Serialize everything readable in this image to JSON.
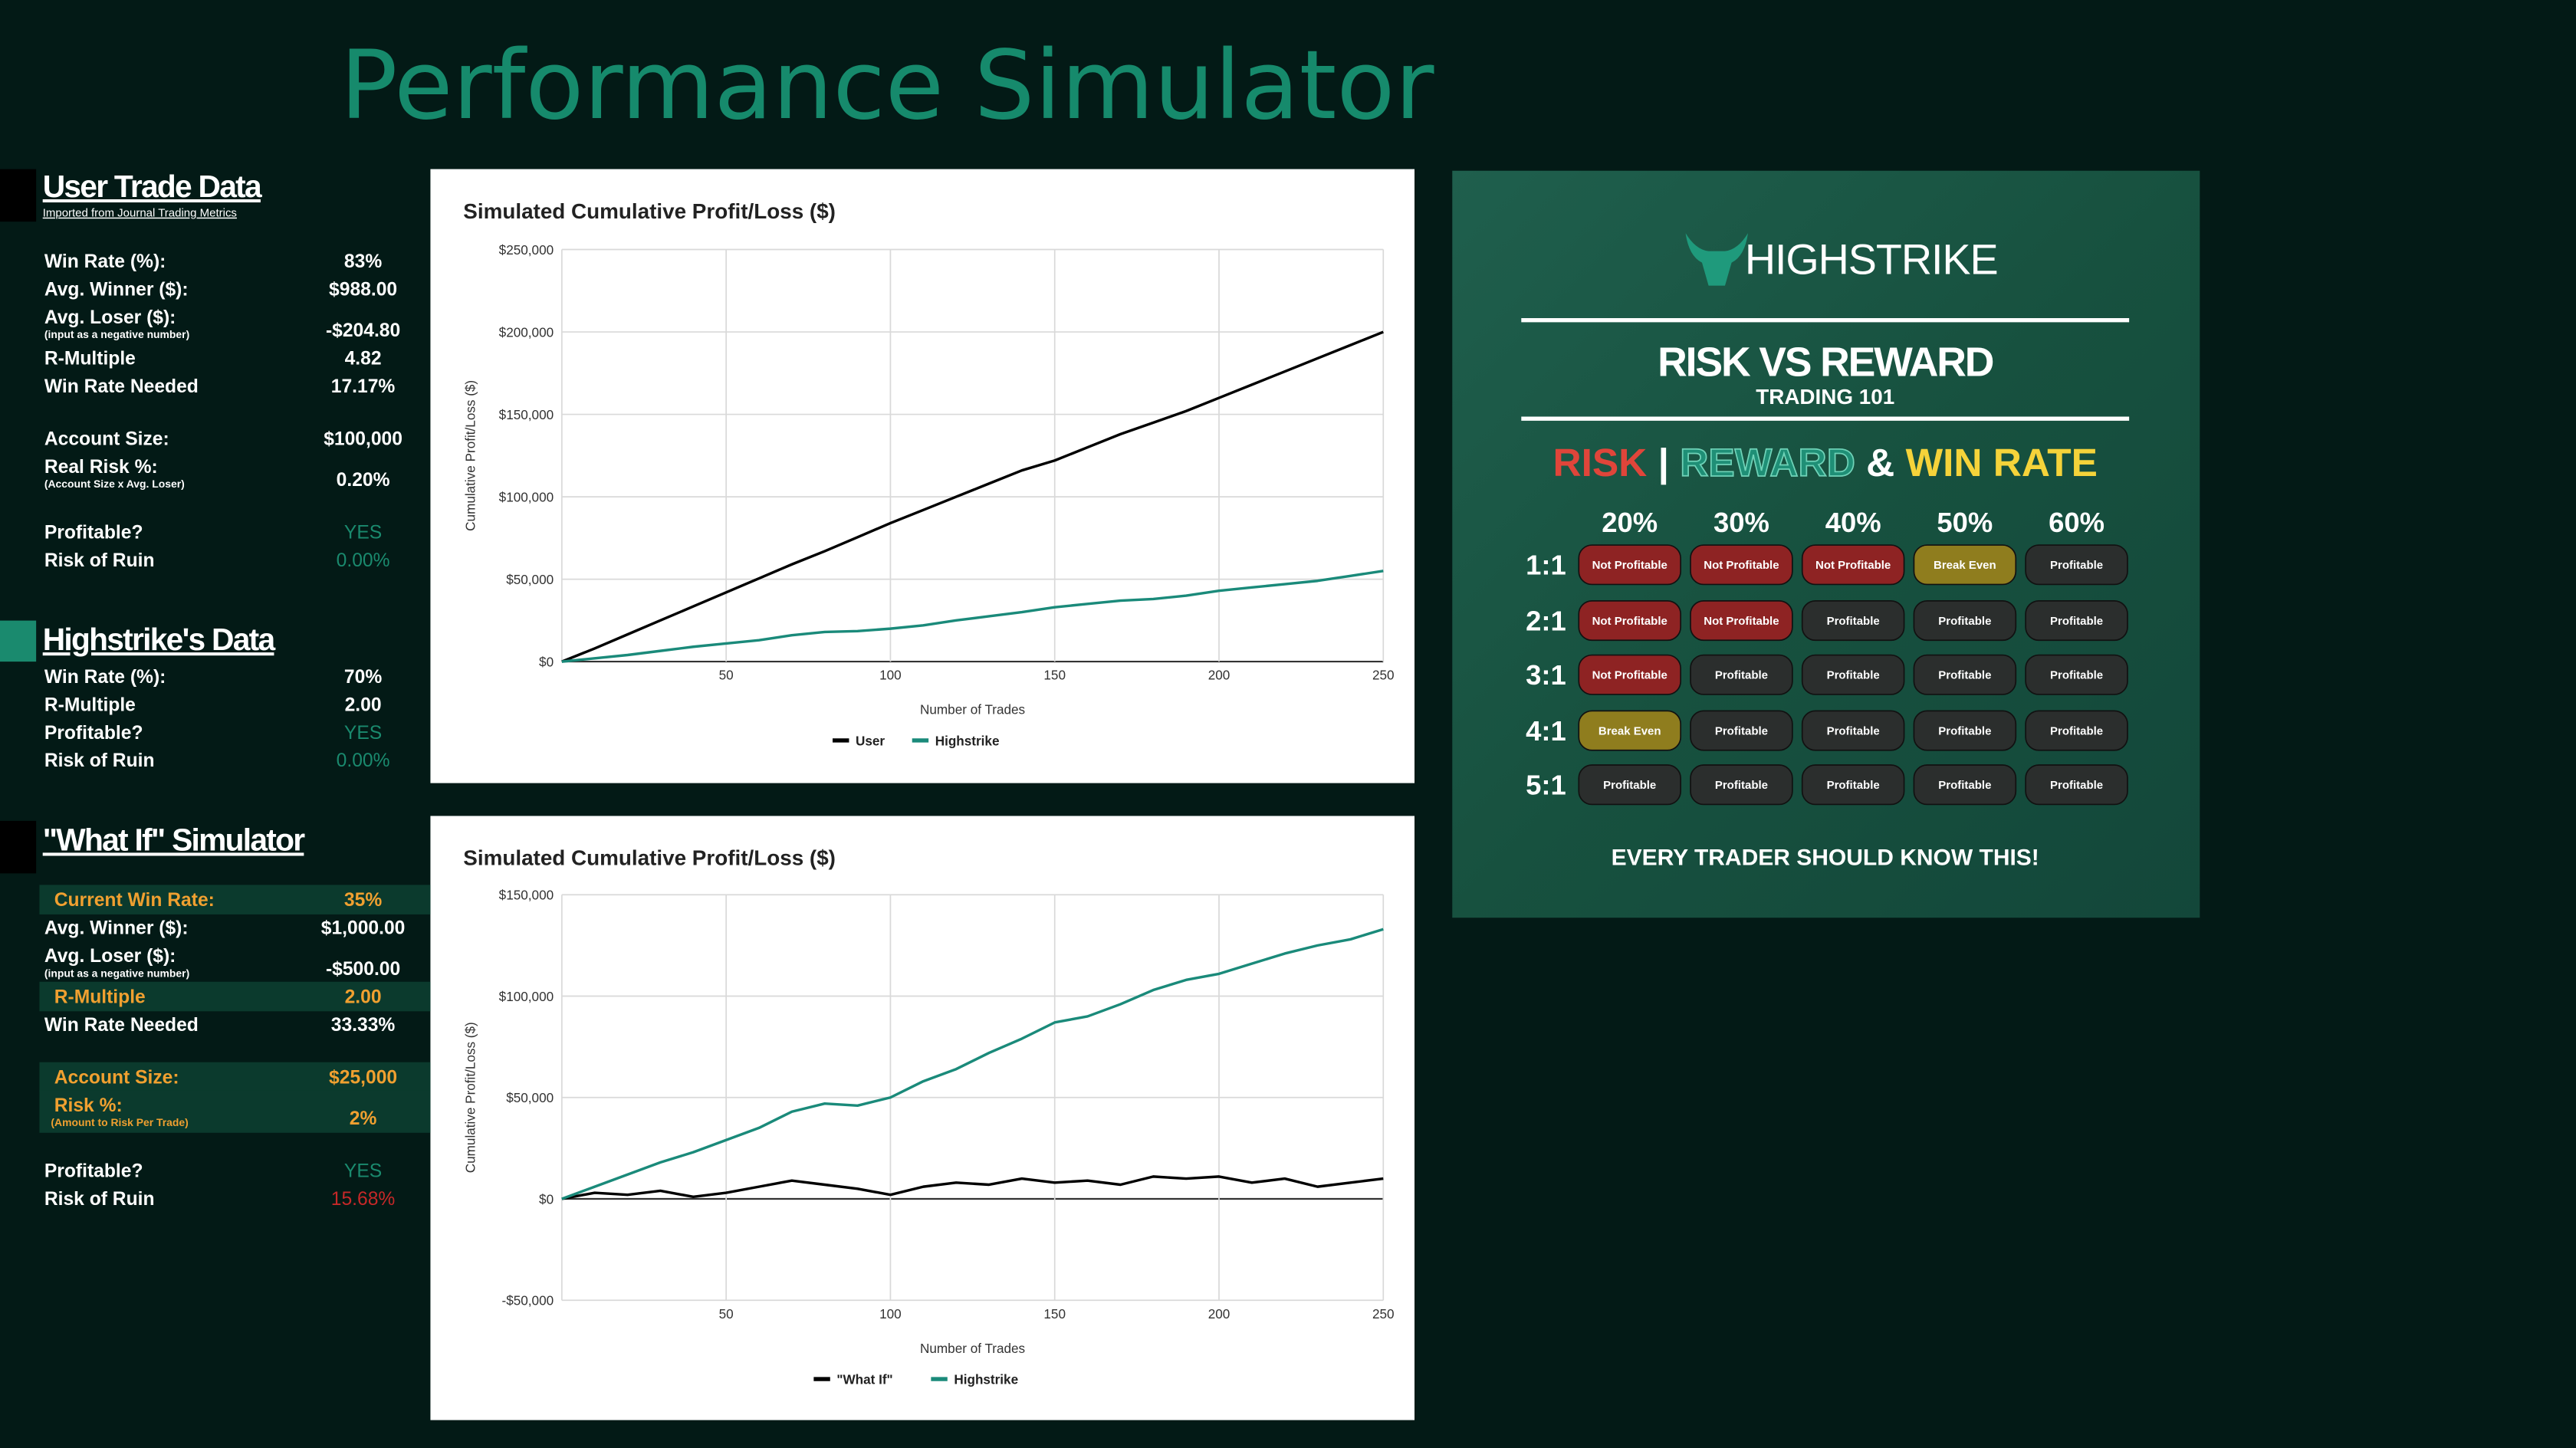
{
  "title": "Performance Simulator",
  "sections": [
    {
      "title": "User Trade Data",
      "subtitle": "Imported from Journal Trading Metrics",
      "marker_color": "#000000",
      "groups": [
        [
          {
            "label": "Win Rate (%):",
            "value": "83%"
          },
          {
            "label": "Avg. Winner ($):",
            "value": "$988.00"
          },
          {
            "label": "Avg. Loser ($):",
            "note": "(input as a negative number)",
            "value": "-$204.80"
          },
          {
            "label": "R-Multiple",
            "value": "4.82"
          },
          {
            "label": "Win Rate Needed",
            "value": "17.17%"
          }
        ],
        [
          {
            "label": "Account Size:",
            "value": "$100,000"
          },
          {
            "label": "Real Risk %:",
            "note": "(Account Size x Avg. Loser)",
            "value": "0.20%"
          }
        ],
        [
          {
            "label": "Profitable?",
            "value": "YES",
            "value_color": "#1a8a6e"
          },
          {
            "label": "Risk of Ruin",
            "value": "0.00%",
            "value_color": "#1a8a6e"
          }
        ]
      ]
    },
    {
      "title": "Highstrike's Data",
      "marker_color": "#1a8a6e",
      "groups": [
        [
          {
            "label": "Win Rate (%):",
            "value": "70%"
          },
          {
            "label": "R-Multiple",
            "value": "2.00"
          },
          {
            "label": "Profitable?",
            "value": "YES",
            "value_color": "#1a8a6e"
          },
          {
            "label": "Risk of Ruin",
            "value": "0.00%",
            "value_color": "#1a8a6e"
          }
        ]
      ]
    },
    {
      "title": "\"What If\" Simulator",
      "marker_color": "#000000",
      "groups": [
        [
          {
            "label": "Current Win Rate:",
            "value": "35%",
            "highlight": true
          },
          {
            "label": "Avg. Winner ($):",
            "value": "$1,000.00"
          },
          {
            "label": "Avg. Loser ($):",
            "note": "(input as a negative number)",
            "value": "-$500.00"
          },
          {
            "label": "R-Multiple",
            "value": "2.00",
            "highlight": true
          },
          {
            "label": "Win Rate Needed",
            "value": "33.33%"
          }
        ],
        [
          {
            "label": "Account Size:",
            "value": "$25,000",
            "highlight": true
          },
          {
            "label": "Risk %:",
            "note": "(Amount to Risk Per Trade)",
            "value": "2%",
            "highlight": true
          }
        ],
        [
          {
            "label": "Profitable?",
            "value": "YES",
            "value_color": "#1a8a6e"
          },
          {
            "label": "Risk of Ruin",
            "value": "15.68%",
            "value_color": "#c62828"
          }
        ]
      ]
    }
  ],
  "chart_data": [
    {
      "type": "line",
      "title": "Simulated Cumulative Profit/Loss ($)",
      "x_label": "Number of Trades",
      "y_label": "Cumulative Profit/Loss ($)",
      "x": [
        0,
        10,
        20,
        30,
        40,
        50,
        60,
        70,
        80,
        90,
        100,
        110,
        120,
        130,
        140,
        150,
        160,
        170,
        180,
        190,
        200,
        210,
        220,
        230,
        240,
        250
      ],
      "xlim": [
        0,
        250
      ],
      "xticks": [
        50,
        100,
        150,
        200,
        250
      ],
      "ylim": [
        0,
        250000
      ],
      "yticks": [
        {
          "value": 0,
          "label": "$0"
        },
        {
          "value": 50000,
          "label": "$50,000"
        },
        {
          "value": 100000,
          "label": "$100,000"
        },
        {
          "value": 150000,
          "label": "$150,000"
        },
        {
          "value": 200000,
          "label": "$200,000"
        },
        {
          "value": 250000,
          "label": "$250,000"
        }
      ],
      "grid": true,
      "series": [
        {
          "name": "User",
          "color": "#000000",
          "values": [
            0,
            8000,
            16500,
            25000,
            33500,
            42000,
            50500,
            59000,
            67000,
            75500,
            84000,
            92000,
            100000,
            108000,
            116000,
            122000,
            130000,
            138000,
            145000,
            152000,
            160000,
            168000,
            176000,
            184000,
            192000,
            200000
          ]
        },
        {
          "name": "Highstrike",
          "color": "#1a8a7a",
          "values": [
            0,
            2000,
            4000,
            6500,
            9000,
            11000,
            13000,
            16000,
            18000,
            18500,
            20000,
            22000,
            25000,
            27500,
            30000,
            33000,
            35000,
            37000,
            38000,
            40000,
            43000,
            45000,
            47000,
            49000,
            52000,
            55000
          ]
        }
      ]
    },
    {
      "type": "line",
      "title": "Simulated Cumulative Profit/Loss ($)",
      "x_label": "Number of Trades",
      "y_label": "Cumulative Profit/Loss ($)",
      "x": [
        0,
        10,
        20,
        30,
        40,
        50,
        60,
        70,
        80,
        90,
        100,
        110,
        120,
        130,
        140,
        150,
        160,
        170,
        180,
        190,
        200,
        210,
        220,
        230,
        240,
        250
      ],
      "xlim": [
        0,
        250
      ],
      "xticks": [
        50,
        100,
        150,
        200,
        250
      ],
      "ylim": [
        -50000,
        150000
      ],
      "yticks": [
        {
          "value": -50000,
          "label": "-$50,000"
        },
        {
          "value": 0,
          "label": "$0"
        },
        {
          "value": 50000,
          "label": "$50,000"
        },
        {
          "value": 100000,
          "label": "$100,000"
        },
        {
          "value": 150000,
          "label": "$150,000"
        }
      ],
      "grid": true,
      "series": [
        {
          "name": "\"What If\"",
          "color": "#000000",
          "values": [
            0,
            3000,
            2000,
            4000,
            1000,
            3000,
            6000,
            9000,
            7000,
            5000,
            2000,
            6000,
            8000,
            7000,
            10000,
            8000,
            9000,
            7000,
            11000,
            10000,
            11000,
            8000,
            10000,
            6000,
            8000,
            10000
          ]
        },
        {
          "name": "Highstrike",
          "color": "#1a8a7a",
          "values": [
            0,
            6000,
            12000,
            18000,
            23000,
            29000,
            35000,
            43000,
            47000,
            46000,
            50000,
            58000,
            64000,
            72000,
            79000,
            87000,
            90000,
            96000,
            103000,
            108000,
            111000,
            116000,
            121000,
            125000,
            128000,
            133000
          ]
        }
      ]
    }
  ],
  "infographic": {
    "brand": "HIGHSTRIKE",
    "title": "RISK VS REWARD",
    "subtitle": "TRADING 101",
    "headline": [
      {
        "text": "RISK",
        "color": "#e0453a"
      },
      {
        "text": "|",
        "color": "#ffffff"
      },
      {
        "text": "REWARD",
        "color": "#1f8f76"
      },
      {
        "text": "&",
        "color": "#ffffff"
      },
      {
        "text": "WIN RATE",
        "color": "#f5d33a"
      }
    ],
    "columns": [
      "20%",
      "30%",
      "40%",
      "50%",
      "60%"
    ],
    "rows": [
      {
        "label": "1:1",
        "cells": [
          {
            "text": "Not Profitable",
            "color": "#8e2323"
          },
          {
            "text": "Not Profitable",
            "color": "#8e2323"
          },
          {
            "text": "Not Profitable",
            "color": "#8e2323"
          },
          {
            "text": "Break Even",
            "color": "#8f7d1e"
          },
          {
            "text": "Profitable",
            "color": "#2b2e2d"
          }
        ]
      },
      {
        "label": "2:1",
        "cells": [
          {
            "text": "Not Profitable",
            "color": "#8e2323"
          },
          {
            "text": "Not Profitable",
            "color": "#8e2323"
          },
          {
            "text": "Profitable",
            "color": "#2b2e2d"
          },
          {
            "text": "Profitable",
            "color": "#2b2e2d"
          },
          {
            "text": "Profitable",
            "color": "#2b2e2d"
          }
        ]
      },
      {
        "label": "3:1",
        "cells": [
          {
            "text": "Not Profitable",
            "color": "#8e2323"
          },
          {
            "text": "Profitable",
            "color": "#2b2e2d"
          },
          {
            "text": "Profitable",
            "color": "#2b2e2d"
          },
          {
            "text": "Profitable",
            "color": "#2b2e2d"
          },
          {
            "text": "Profitable",
            "color": "#2b2e2d"
          }
        ]
      },
      {
        "label": "4:1",
        "cells": [
          {
            "text": "Break Even",
            "color": "#8f7d1e"
          },
          {
            "text": "Profitable",
            "color": "#2b2e2d"
          },
          {
            "text": "Profitable",
            "color": "#2b2e2d"
          },
          {
            "text": "Profitable",
            "color": "#2b2e2d"
          },
          {
            "text": "Profitable",
            "color": "#2b2e2d"
          }
        ]
      },
      {
        "label": "5:1",
        "cells": [
          {
            "text": "Profitable",
            "color": "#2b2e2d"
          },
          {
            "text": "Profitable",
            "color": "#2b2e2d"
          },
          {
            "text": "Profitable",
            "color": "#2b2e2d"
          },
          {
            "text": "Profitable",
            "color": "#2b2e2d"
          },
          {
            "text": "Profitable",
            "color": "#2b2e2d"
          }
        ]
      }
    ],
    "footer": "EVERY TRADER SHOULD KNOW THIS!"
  }
}
